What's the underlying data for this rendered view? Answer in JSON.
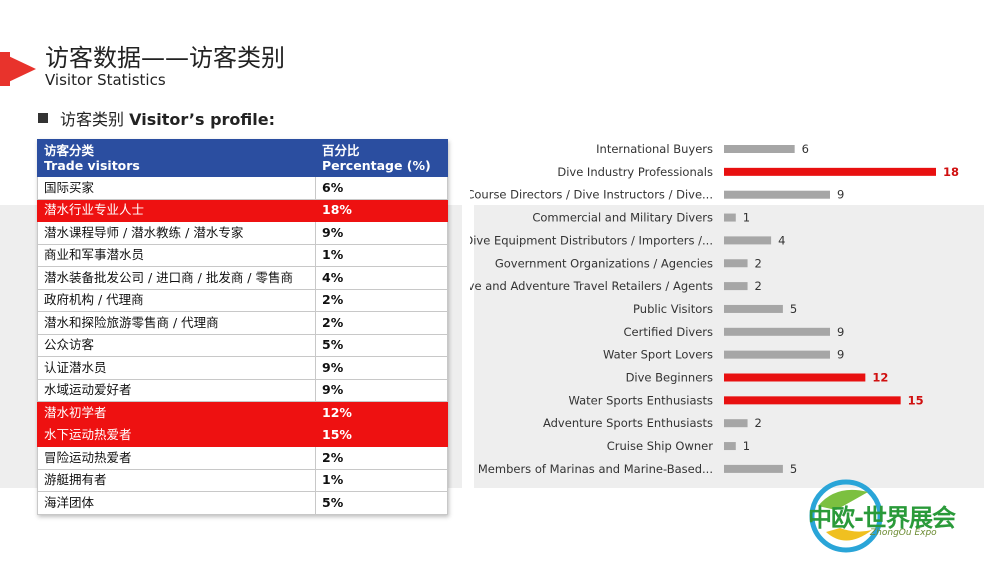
{
  "header": {
    "title": "访客数据——访客类别",
    "subtitle": "Visitor Statistics"
  },
  "section": {
    "label_cn": "访客类别",
    "label_en": "Visitor’s profile:"
  },
  "table": {
    "header": {
      "col1_cn": "访客分类",
      "col1_en": "Trade visitors",
      "col2_cn": "百分比",
      "col2_en": "Percentage (%)"
    },
    "rows": [
      {
        "name": "国际买家",
        "pct": "6%",
        "highlight": false
      },
      {
        "name": "潜水行业专业人士",
        "pct": "18%",
        "highlight": true
      },
      {
        "name": "潜水课程导师 / 潜水教练 / 潜水专家",
        "pct": "9%",
        "highlight": false
      },
      {
        "name": "商业和军事潜水员",
        "pct": "1%",
        "highlight": false
      },
      {
        "name": "潜水装备批发公司 / 进口商 / 批发商 / 零售商",
        "pct": "4%",
        "highlight": false
      },
      {
        "name": "政府机构 / 代理商",
        "pct": "2%",
        "highlight": false
      },
      {
        "name": "潜水和探险旅游零售商 / 代理商",
        "pct": "2%",
        "highlight": false
      },
      {
        "name": "公众访客",
        "pct": "5%",
        "highlight": false
      },
      {
        "name": "认证潜水员",
        "pct": "9%",
        "highlight": false
      },
      {
        "name": "水域运动爱好者",
        "pct": "9%",
        "highlight": false
      },
      {
        "name": "潜水初学者",
        "pct": "12%",
        "highlight": true
      },
      {
        "name": "水下运动热爱者",
        "pct": "15%",
        "highlight": true
      },
      {
        "name": "冒险运动热爱者",
        "pct": "2%",
        "highlight": false
      },
      {
        "name": "游艇拥有者",
        "pct": "1%",
        "highlight": false
      },
      {
        "name": "海洋团体",
        "pct": "5%",
        "highlight": false
      }
    ]
  },
  "chart_data": {
    "type": "bar",
    "orientation": "horizontal",
    "categories": [
      "International Buyers",
      "Dive Industry Professionals",
      "Course Directors / Dive Instructors / Dive...",
      "Commercial and Military Divers",
      "Dive Equipment Distributors / Importers /...",
      "Government Organizations / Agencies",
      "Dive and Adventure Travel Retailers / Agents",
      "Public Visitors",
      "Certified Divers",
      "Water Sport Lovers",
      "Dive Beginners",
      "Water Sports Enthusiasts",
      "Adventure Sports Enthusiasts",
      "Cruise Ship Owner",
      "Members of Marinas and Marine-Based..."
    ],
    "values": [
      6,
      18,
      9,
      1,
      4,
      2,
      2,
      5,
      9,
      9,
      12,
      15,
      2,
      1,
      5
    ],
    "highlighted": [
      false,
      true,
      false,
      false,
      false,
      false,
      false,
      false,
      false,
      false,
      true,
      true,
      false,
      false,
      false
    ],
    "title": "",
    "xlabel": "",
    "ylabel": "",
    "xlim": [
      0,
      18
    ],
    "grid": false,
    "colors": {
      "normal": "#a6a6a6",
      "highlight": "#e81010",
      "label_normal": "#333333",
      "label_highlight": "#d01010"
    }
  },
  "logo": {
    "text": "中欧-世界展会",
    "sub": "ZhongOu Expo"
  },
  "colors": {
    "accent": "#e8332c",
    "table_header": "#2b4ea0",
    "highlight_row": "#ee1111"
  }
}
